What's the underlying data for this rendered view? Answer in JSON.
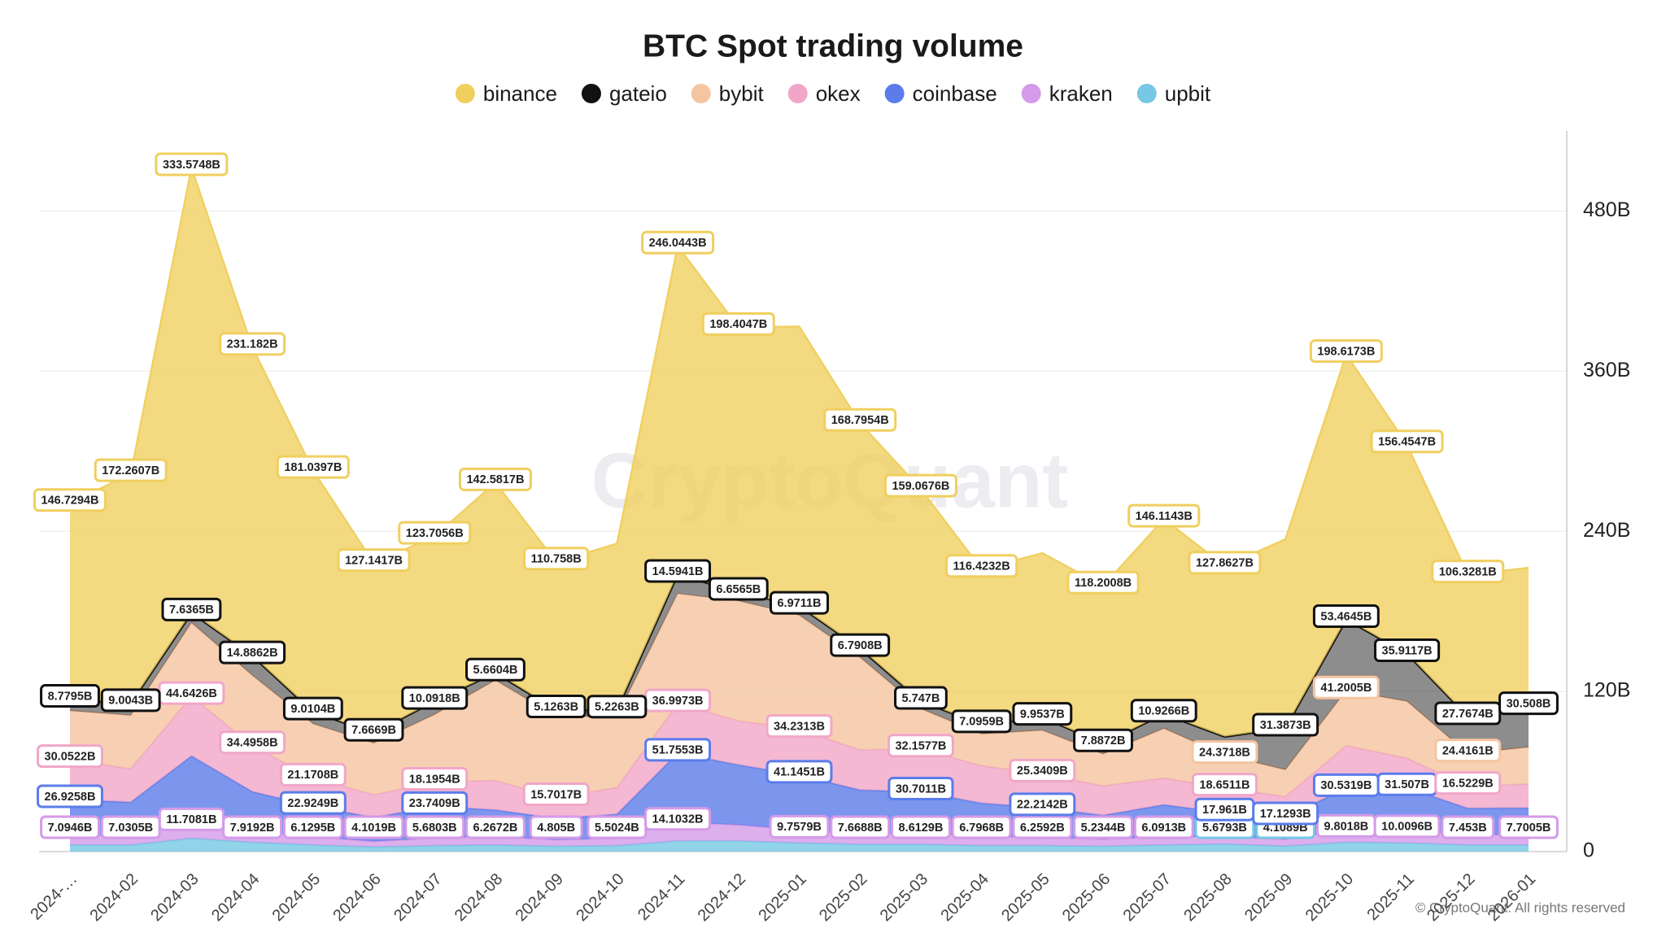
{
  "chart_data": {
    "type": "stacked_area",
    "title": "BTC Spot trading volume",
    "watermark": "CryptoQuant",
    "credit": "© CryptoQuant. All rights reserved",
    "categories": [
      "2024-…",
      "2024-02",
      "2024-03",
      "2024-04",
      "2024-05",
      "2024-06",
      "2024-07",
      "2024-08",
      "2024-09",
      "2024-10",
      "2024-11",
      "2024-12",
      "2025-01",
      "2025-02",
      "2025-03",
      "2025-04",
      "2025-05",
      "2025-06",
      "2025-07",
      "2025-08",
      "2025-09",
      "2025-10",
      "2025-11",
      "2025-12",
      "2026-01"
    ],
    "ylim": [
      0,
      540
    ],
    "yticks": [
      0,
      {
        "value": 120,
        "label": "120B"
      },
      {
        "value": 240,
        "label": "240B"
      },
      {
        "value": 360,
        "label": "360B"
      },
      {
        "value": 480,
        "label": "480B"
      }
    ],
    "grid": true,
    "legend": "top",
    "series": [
      {
        "name": "binance",
        "color": "#f0cf5f",
        "values": [
          146.7294,
          172.2607,
          333.5748,
          231.182,
          181.0397,
          127.1417,
          123.7056,
          142.5817,
          110.758,
          124.6,
          246.0443,
          198.4047,
          209.5,
          168.7954,
          159.0676,
          116.4232,
          122.9,
          118.2008,
          146.1143,
          127.8627,
          141.5,
          198.6173,
          156.4547,
          106.3281,
          104
        ],
        "value_labels": [
          "146.7294B",
          "172.2607B",
          "333.5748B",
          "231.182B",
          "181.0397B",
          "127.1417B",
          "123.7056B",
          "142.5817B",
          "110.758B",
          null,
          "246.0443B",
          "198.4047B",
          null,
          "168.7954B",
          "159.0676B",
          "116.4232B",
          null,
          "118.2008B",
          "146.1143B",
          "127.8627B",
          null,
          "198.6173B",
          "156.4547B",
          "106.3281B",
          null
        ]
      },
      {
        "name": "gateio",
        "color": "#111111",
        "values": [
          8.7795,
          9.0043,
          7.6365,
          14.8862,
          9.0104,
          7.6669,
          10.0918,
          5.6604,
          5.1263,
          5.2263,
          14.5941,
          6.6565,
          6.9711,
          6.7908,
          5.747,
          7.0959,
          9.9537,
          7.8872,
          10.9266,
          14,
          31.3873,
          53.4645,
          35.9117,
          27.7674,
          30.508
        ],
        "value_labels": [
          "8.7795B",
          "9.0043B",
          "7.6365B",
          "14.8862B",
          "9.0104B",
          "7.6669B",
          "10.0918B",
          "5.6604B",
          "5.1263B",
          "5.2263B",
          "14.5941B",
          "6.6565B",
          "6.9711B",
          "6.7908B",
          "5.747B",
          "7.0959B",
          "9.9537B",
          "7.8872B",
          "10.9266B",
          null,
          "31.3873B",
          "53.4645B",
          "35.9117B",
          "27.7674B",
          "30.508B"
        ]
      },
      {
        "name": "bybit",
        "color": "#f5c4a1",
        "values": [
          36.4,
          40,
          55,
          52.5,
          40.5,
          38.6,
          50.5,
          75,
          60.7,
          53,
          82.4,
          89.8,
          85.4,
          69.3,
          30,
          23.8,
          32.5,
          23.8,
          37.1,
          24.3718,
          20,
          41.2005,
          42.5,
          24.4161,
          27.5
        ],
        "value_labels": [
          null,
          null,
          null,
          null,
          null,
          null,
          null,
          null,
          null,
          null,
          null,
          null,
          null,
          null,
          null,
          null,
          null,
          null,
          null,
          "24.3718B",
          null,
          "41.2005B",
          null,
          "24.4161B",
          null
        ]
      },
      {
        "name": "okex",
        "color": "#f1a6c8",
        "values": [
          30.0522,
          25,
          44.6426,
          34.4958,
          21.1708,
          17,
          18.1954,
          22,
          15.7017,
          20,
          36.9973,
          33,
          34.2313,
          30,
          32.1577,
          28,
          25.3409,
          22,
          20,
          18.6511,
          15,
          32,
          22,
          16.5229,
          18
        ],
        "value_labels": [
          "30.0522B",
          null,
          "44.6426B",
          "34.4958B",
          "21.1708B",
          null,
          "18.1954B",
          null,
          "15.7017B",
          null,
          "36.9973B",
          null,
          "34.2313B",
          null,
          "32.1577B",
          null,
          "25.3409B",
          null,
          null,
          "18.6511B",
          null,
          null,
          null,
          "16.5229B",
          null
        ]
      },
      {
        "name": "coinbase",
        "color": "#5b7cea",
        "values": [
          26.9258,
          25,
          50,
          30,
          22.9249,
          18,
          23.7409,
          20,
          16,
          18,
          51.7553,
          45,
          41.1451,
          33,
          30.7011,
          25,
          22.2142,
          18,
          24,
          17.961,
          17.1293,
          30.5319,
          31.507,
          20,
          20
        ],
        "value_labels": [
          "26.9258B",
          null,
          null,
          null,
          "22.9249B",
          null,
          "23.7409B",
          null,
          null,
          null,
          "51.7553B",
          null,
          "41.1451B",
          null,
          "30.7011B",
          null,
          "22.2142B",
          null,
          null,
          "17.961B",
          "17.1293B",
          "30.5319B",
          "31.507B",
          null,
          null
        ]
      },
      {
        "name": "kraken",
        "color": "#d49be8",
        "values": [
          7.0946,
          7.0305,
          11.7081,
          7.9192,
          6.1295,
          4.1019,
          5.6803,
          6.2672,
          4.805,
          5.5024,
          14.1032,
          12,
          9.7579,
          7.6688,
          8.6129,
          6.7968,
          6.2592,
          5.2344,
          6.0913,
          5.5,
          5,
          9.8018,
          10.0096,
          7.453,
          7.7005
        ],
        "value_labels": [
          "7.0946B",
          "7.0305B",
          "11.7081B",
          "7.9192B",
          "6.1295B",
          "4.1019B",
          "5.6803B",
          "6.2672B",
          "4.805B",
          "5.5024B",
          "14.1032B",
          null,
          "9.7579B",
          "7.6688B",
          "8.6129B",
          "6.7968B",
          "6.2592B",
          "5.2344B",
          "6.0913B",
          null,
          null,
          "9.8018B",
          "10.0096B",
          "7.453B",
          "7.7005B"
        ]
      },
      {
        "name": "upbit",
        "color": "#76c8e4",
        "values": [
          5,
          5,
          10,
          7,
          5,
          3.5,
          4.5,
          5,
          4,
          4.5,
          8,
          8,
          6.5,
          5.5,
          5.5,
          4.5,
          4.5,
          4,
          5,
          5.6793,
          4.1089,
          7,
          6.5,
          5,
          5
        ],
        "value_labels": [
          null,
          null,
          null,
          null,
          null,
          null,
          null,
          null,
          null,
          null,
          null,
          null,
          null,
          null,
          null,
          null,
          null,
          null,
          null,
          "5.6793B",
          "4.1089B",
          null,
          null,
          null,
          null
        ]
      }
    ]
  }
}
